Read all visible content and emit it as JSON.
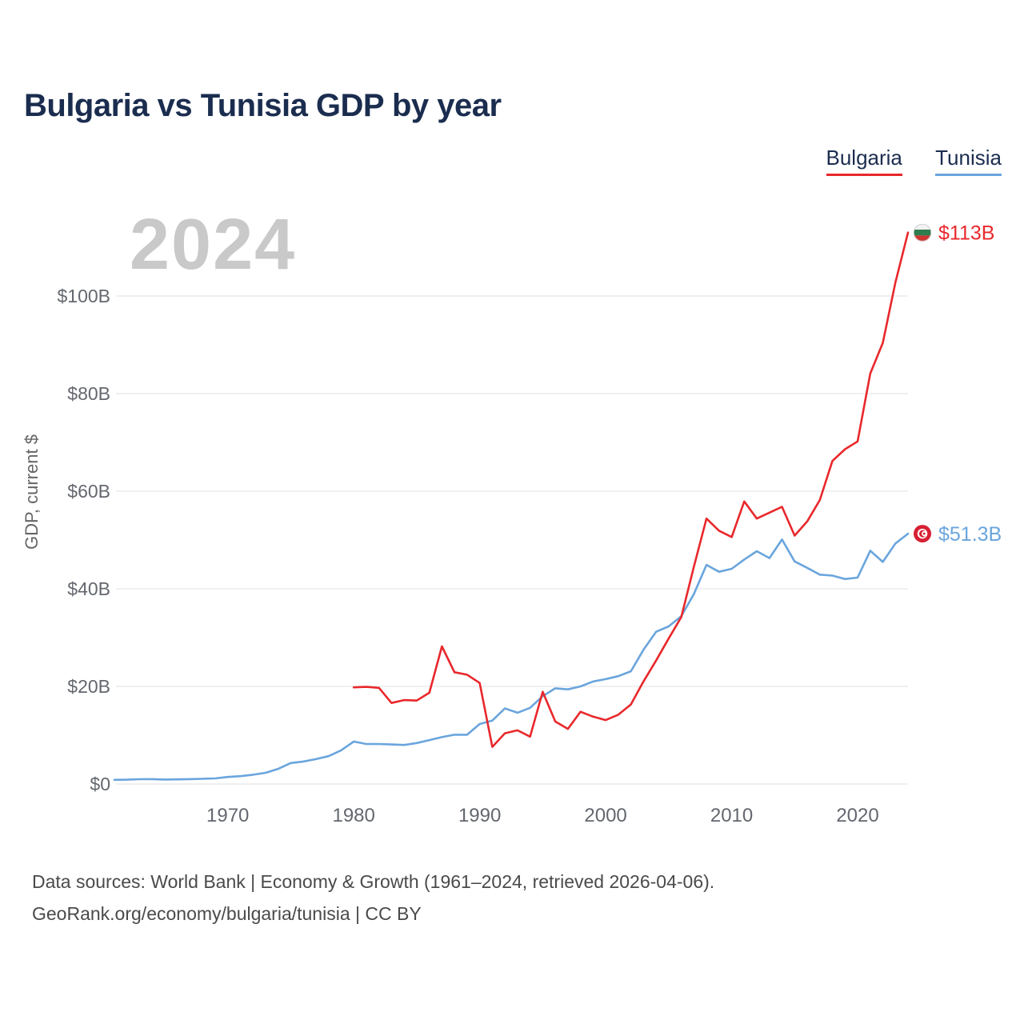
{
  "title": "Bulgaria vs Tunisia GDP by year",
  "watermark": "2024",
  "legend": [
    {
      "label": "Bulgaria",
      "color": "#e8282c"
    },
    {
      "label": "Tunisia",
      "color": "#6aa5dd"
    }
  ],
  "y_axis": {
    "label": "GDP, current $",
    "ticks": [
      "$0",
      "$20B",
      "$40B",
      "$60B",
      "$80B",
      "$100B"
    ],
    "tick_values": [
      0,
      20,
      40,
      60,
      80,
      100
    ]
  },
  "x_axis": {
    "ticks": [
      1970,
      1980,
      1990,
      2000,
      2010,
      2020
    ]
  },
  "footer": {
    "line1": "Data sources: World Bank | Economy & Growth (1961–2024, retrieved 2026-04-06).",
    "line2": "GeoRank.org/economy/bulgaria/tunisia | CC BY"
  },
  "chart_data": {
    "type": "line",
    "title": "Bulgaria vs Tunisia GDP by year",
    "xlabel": "",
    "ylabel": "GDP, current $",
    "x_range": [
      1961,
      2024
    ],
    "ylim": [
      0,
      115
    ],
    "grid": "horizontal",
    "legend_position": "top-right",
    "units": "billions of current US$",
    "series": [
      {
        "name": "Bulgaria",
        "color": "#e8282c",
        "start_year": 1980,
        "end_label": "$113B",
        "end_value": 113,
        "values": [
          19.8,
          19.9,
          19.7,
          16.6,
          17.2,
          17.1,
          18.7,
          28.2,
          22.9,
          22.4,
          20.7,
          7.6,
          10.4,
          11.0,
          9.7,
          18.9,
          12.8,
          11.3,
          14.8,
          13.8,
          13.1,
          14.2,
          16.3,
          21.0,
          25.3,
          29.8,
          34.2,
          44.5,
          54.4,
          51.9,
          50.6,
          57.9,
          54.4,
          55.6,
          56.8,
          50.9,
          53.8,
          58.2,
          66.2,
          68.6,
          70.2,
          84.1,
          90.4,
          102.8,
          113.0
        ]
      },
      {
        "name": "Tunisia",
        "color": "#6aa5dd",
        "start_year": 1961,
        "end_label": "$51.3B",
        "end_value": 51.3,
        "values": [
          0.85,
          0.88,
          0.98,
          1.0,
          0.92,
          0.95,
          1.0,
          1.07,
          1.14,
          1.44,
          1.6,
          1.9,
          2.3,
          3.1,
          4.3,
          4.6,
          5.1,
          5.7,
          6.9,
          8.7,
          8.2,
          8.2,
          8.1,
          8.0,
          8.4,
          9.0,
          9.6,
          10.1,
          10.1,
          12.3,
          13.0,
          15.5,
          14.6,
          15.6,
          18.0,
          19.6,
          19.4,
          20.0,
          21.0,
          21.5,
          22.1,
          23.1,
          27.5,
          31.2,
          32.3,
          34.4,
          38.9,
          44.9,
          43.5,
          44.1,
          46.0,
          47.7,
          46.3,
          50.1,
          45.6,
          44.3,
          42.9,
          42.7,
          42.0,
          42.3,
          47.8,
          45.5,
          49.3,
          51.3
        ]
      }
    ]
  }
}
